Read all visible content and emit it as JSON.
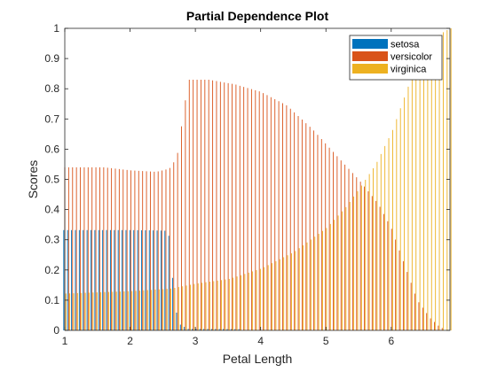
{
  "chart_data": {
    "type": "bar",
    "title": "Partial Dependence Plot",
    "xlabel": "Petal Length",
    "ylabel": "Scores",
    "xlim": [
      1,
      6.9
    ],
    "ylim": [
      0,
      1
    ],
    "grid": false,
    "legend_position": "top-right",
    "xticks": [
      "1",
      "2",
      "3",
      "4",
      "5",
      "6"
    ],
    "yticks": [
      "0",
      "0.1",
      "0.2",
      "0.3",
      "0.4",
      "0.5",
      "0.6",
      "0.7",
      "0.8",
      "0.9",
      "1"
    ],
    "series": [
      {
        "name": "setosa",
        "color": "#0072BD",
        "curve": [
          [
            1.0,
            0.332
          ],
          [
            2.0,
            0.332
          ],
          [
            2.4,
            0.331
          ],
          [
            2.55,
            0.33
          ],
          [
            2.62,
            0.31
          ],
          [
            2.66,
            0.2
          ],
          [
            2.7,
            0.08
          ],
          [
            2.78,
            0.02
          ],
          [
            2.9,
            0.005
          ],
          [
            6.9,
            0.0
          ]
        ]
      },
      {
        "name": "versicolor",
        "color": "#D95319",
        "curve": [
          [
            1.0,
            0.54
          ],
          [
            1.6,
            0.54
          ],
          [
            2.0,
            0.53
          ],
          [
            2.4,
            0.525
          ],
          [
            2.6,
            0.535
          ],
          [
            2.68,
            0.56
          ],
          [
            2.75,
            0.6
          ],
          [
            2.8,
            0.7
          ],
          [
            2.9,
            0.83
          ],
          [
            3.2,
            0.83
          ],
          [
            3.6,
            0.815
          ],
          [
            4.0,
            0.79
          ],
          [
            4.4,
            0.745
          ],
          [
            4.8,
            0.665
          ],
          [
            5.2,
            0.57
          ],
          [
            5.5,
            0.5
          ],
          [
            5.8,
            0.42
          ],
          [
            6.0,
            0.34
          ],
          [
            6.2,
            0.22
          ],
          [
            6.4,
            0.1
          ],
          [
            6.6,
            0.04
          ],
          [
            6.75,
            0.01
          ],
          [
            6.9,
            0.0
          ]
        ]
      },
      {
        "name": "virginica",
        "color": "#EDB120",
        "curve": [
          [
            1.0,
            0.122
          ],
          [
            2.0,
            0.13
          ],
          [
            2.6,
            0.138
          ],
          [
            3.0,
            0.155
          ],
          [
            3.5,
            0.17
          ],
          [
            4.0,
            0.205
          ],
          [
            4.5,
            0.26
          ],
          [
            5.0,
            0.34
          ],
          [
            5.3,
            0.41
          ],
          [
            5.5,
            0.47
          ],
          [
            5.75,
            0.55
          ],
          [
            6.0,
            0.66
          ],
          [
            6.2,
            0.78
          ],
          [
            6.4,
            0.9
          ],
          [
            6.6,
            0.96
          ],
          [
            6.8,
            0.99
          ],
          [
            6.9,
            1.0
          ]
        ]
      }
    ],
    "sample_x": [
      1.0,
      6.9
    ],
    "sample_count": 100
  }
}
